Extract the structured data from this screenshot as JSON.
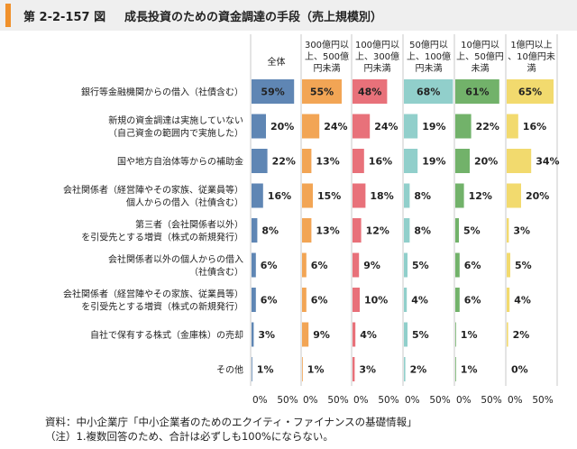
{
  "figure": {
    "number": "第 2-2-157 図",
    "title": "成長投資のための資金調達の手段（売上規模別）"
  },
  "source_note": "資料：中小企業庁「中小企業者のためのエクイティ・ファイナンスの基礎情報」",
  "footnote": "（注）1.複数回答のため、合計は必ずしも100%にならない。",
  "chart_data": {
    "type": "bar",
    "orientation": "horizontal",
    "panels": [
      {
        "name": "全体",
        "color": "#5f86b4",
        "values": [
          59,
          20,
          22,
          16,
          8,
          6,
          6,
          3,
          1
        ]
      },
      {
        "name": "300億円以上、500億円未満",
        "color": "#f2a555",
        "values": [
          55,
          24,
          13,
          15,
          13,
          6,
          6,
          9,
          1
        ]
      },
      {
        "name": "100億円以上、300億円未満",
        "color": "#e8717a",
        "values": [
          48,
          24,
          16,
          18,
          12,
          9,
          10,
          4,
          3
        ]
      },
      {
        "name": "50億円以上、100億円未満",
        "color": "#91cfcb",
        "values": [
          68,
          19,
          19,
          8,
          8,
          5,
          4,
          5,
          2
        ]
      },
      {
        "name": "10億円以上、50億円未満",
        "color": "#72b26a",
        "values": [
          61,
          22,
          20,
          12,
          5,
          6,
          6,
          1,
          1
        ]
      },
      {
        "name": "1億円以上、10億円未満",
        "color": "#f2da6e",
        "values": [
          65,
          16,
          34,
          20,
          3,
          5,
          4,
          2,
          0
        ]
      }
    ],
    "panel_header_lines": [
      [
        "全体"
      ],
      [
        "300億円以",
        "上、500億",
        "円未満"
      ],
      [
        "100億円以",
        "上、300億",
        "円未満"
      ],
      [
        "50億円以",
        "上、100億",
        "円未満"
      ],
      [
        "10億円以",
        "上、50億円",
        "未満"
      ],
      [
        "1億円以上",
        "、10億円未",
        "満"
      ]
    ],
    "categories": [
      [
        "銀行等金融機関からの借入（社債含む）"
      ],
      [
        "新規の資金調達は実施していない",
        "（自己資金の範囲内で実施した）"
      ],
      [
        "国や地方自治体等からの補助金"
      ],
      [
        "会社関係者（経営陣やその家族、従業員等）",
        "個人からの借入（社債含む）"
      ],
      [
        "第三者（会社関係者以外）",
        "を引受先とする増資（株式の新規発行）"
      ],
      [
        "会社関係者以外の個人からの借入",
        "（社債含む）"
      ],
      [
        "会社関係者（経営陣やその家族、従業員等）",
        "を引受先とする増資（株式の新規発行）"
      ],
      [
        "自社で保有する株式（金庫株）の売却"
      ],
      [
        "その他"
      ]
    ],
    "unit": "%",
    "xlim": [
      0,
      100
    ],
    "xticks": [
      "0%",
      "50%"
    ]
  }
}
